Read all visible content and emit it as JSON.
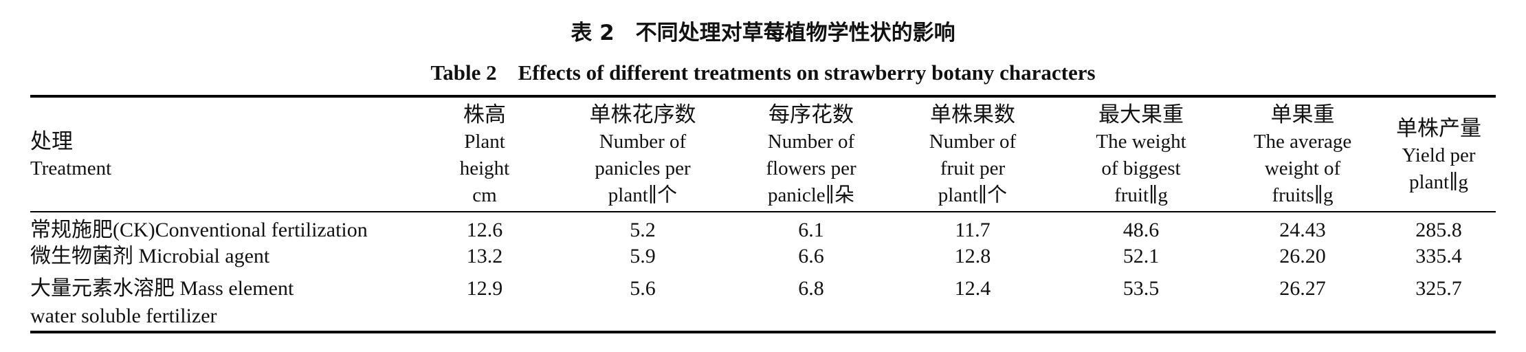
{
  "caption": {
    "cn": "表 2　不同处理对草莓植物学性状的影响",
    "en": "Table 2　Effects of different treatments on strawberry botany characters"
  },
  "headers": [
    {
      "lines": [
        "处理",
        "Treatment"
      ]
    },
    {
      "lines": [
        "株高",
        "Plant",
        "height",
        "cm"
      ]
    },
    {
      "lines": [
        "单株花序数",
        "Number of",
        "panicles per",
        "plant∥个"
      ]
    },
    {
      "lines": [
        "每序花数",
        "Number of",
        "flowers per",
        "panicle∥朵"
      ]
    },
    {
      "lines": [
        "单株果数",
        "Number of",
        "fruit per",
        "plant∥个"
      ]
    },
    {
      "lines": [
        "最大果重",
        "The weight",
        "of biggest",
        "fruit∥g"
      ]
    },
    {
      "lines": [
        "单果重",
        "The average",
        "weight of",
        "fruits∥g"
      ]
    },
    {
      "lines": [
        "单株产量",
        "Yield per",
        "plant∥g"
      ]
    }
  ],
  "rows": [
    {
      "treatment": [
        "常规施肥(CK)Conventional fertilization"
      ],
      "values": [
        "12.6",
        "5.2",
        "6.1",
        "11.7",
        "48.6",
        "24.43",
        "285.8"
      ]
    },
    {
      "treatment": [
        "微生物菌剂 Microbial agent"
      ],
      "values": [
        "13.2",
        "5.9",
        "6.6",
        "12.8",
        "52.1",
        "26.20",
        "335.4"
      ]
    },
    {
      "treatment": [
        "大量元素水溶肥 Mass element",
        "water soluble fertilizer"
      ],
      "values": [
        "12.9",
        "5.6",
        "6.8",
        "12.4",
        "53.5",
        "26.27",
        "325.7"
      ]
    }
  ]
}
